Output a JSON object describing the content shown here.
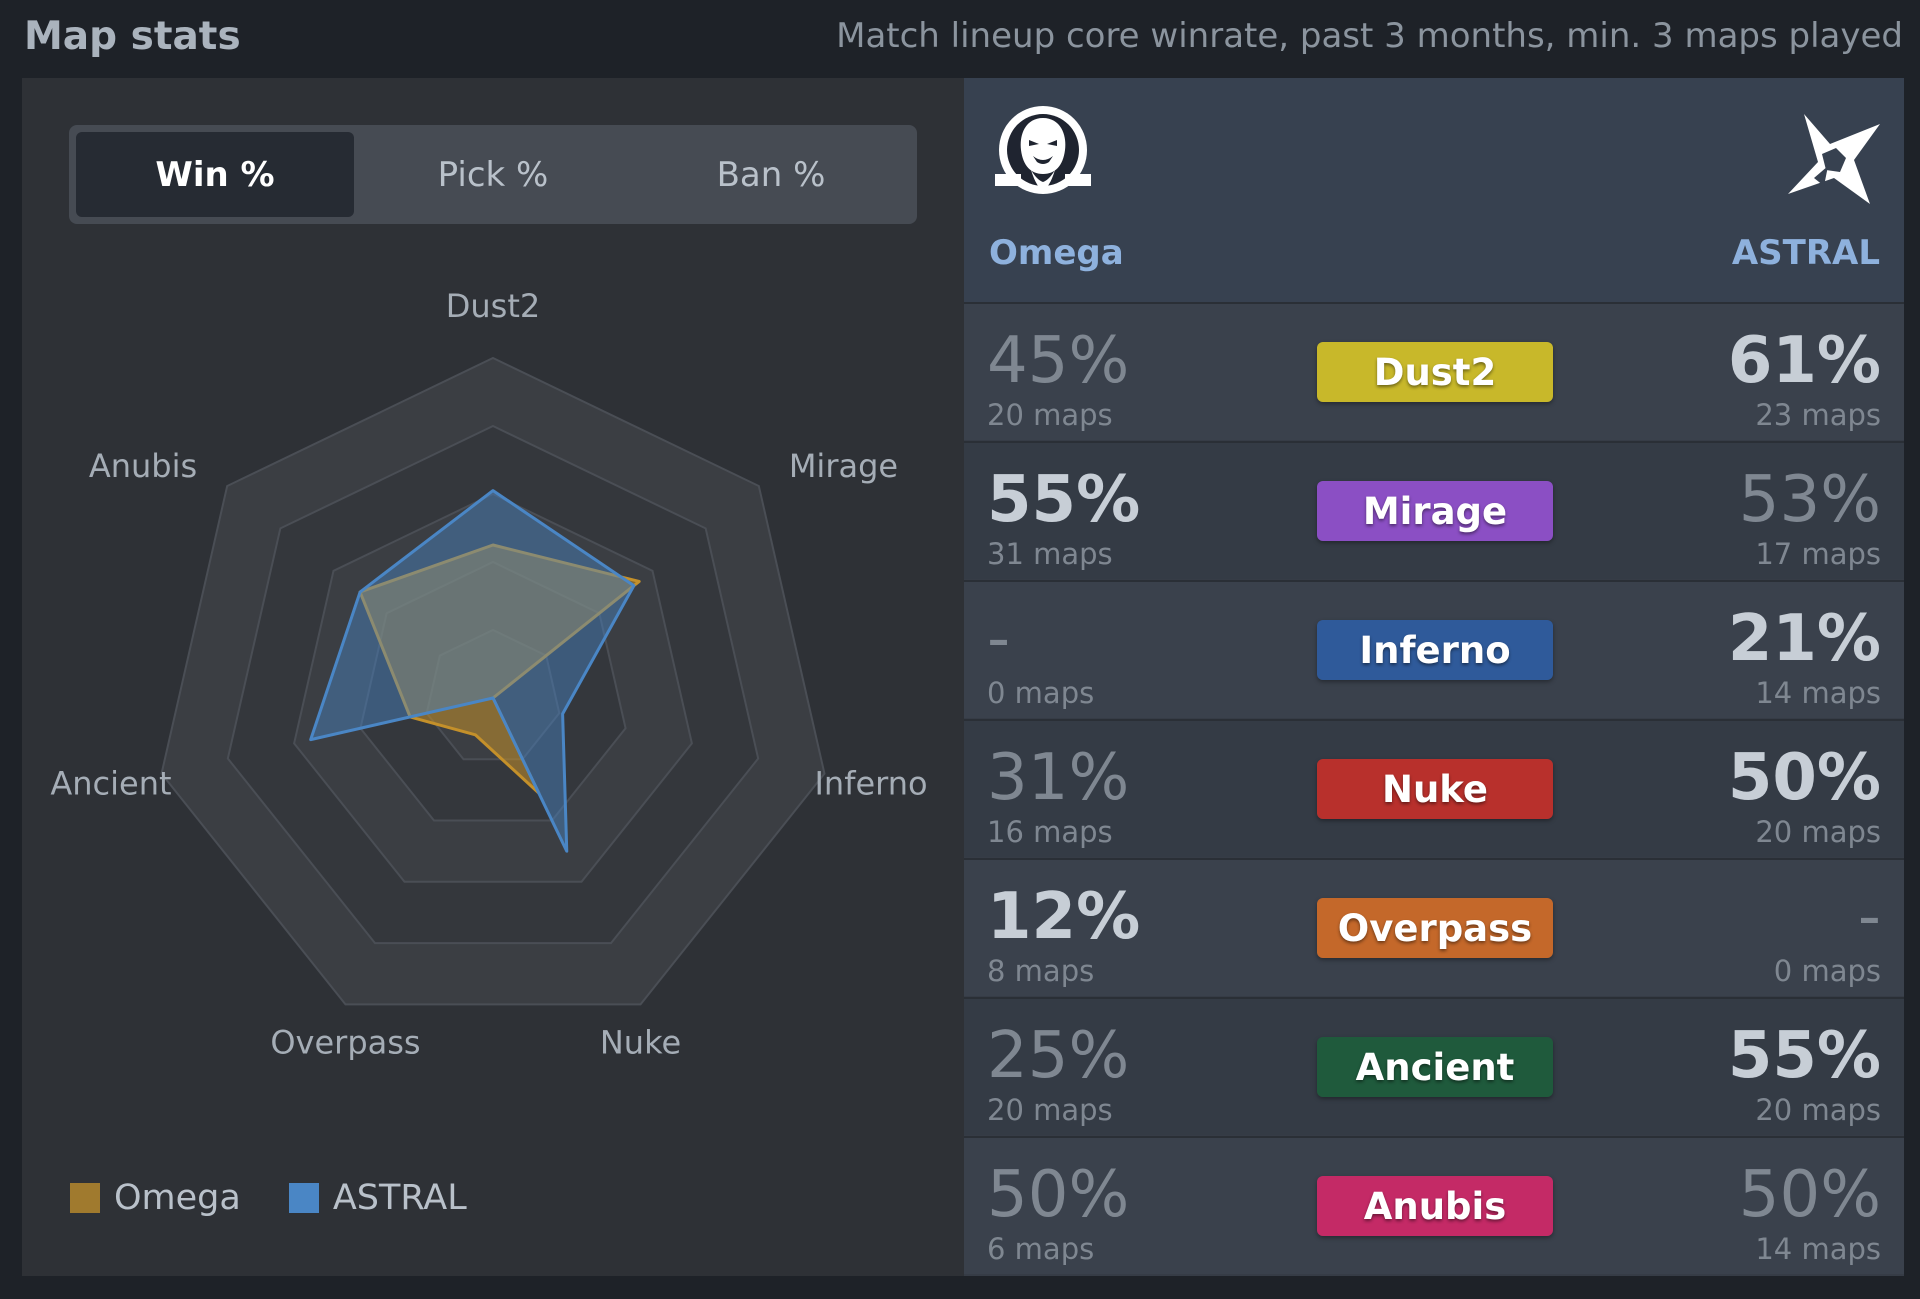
{
  "header": {
    "title": "Map stats",
    "subtitle": "Match lineup core winrate, past 3 months, min. 3 maps played"
  },
  "toggle": {
    "options": [
      {
        "label": "Win %",
        "active": true
      },
      {
        "label": "Pick %",
        "active": false
      },
      {
        "label": "Ban %",
        "active": false
      }
    ]
  },
  "colors": {
    "omega": "#a07a2e",
    "astral": "#4a86c5",
    "team_name": "#8eb1dd"
  },
  "chart_data": {
    "type": "radar",
    "axes": [
      "Dust2",
      "Mirage",
      "Inferno",
      "Nuke",
      "Overpass",
      "Ancient",
      "Anubis"
    ],
    "range": [
      0,
      100
    ],
    "series": [
      {
        "name": "Omega",
        "values": [
          45,
          55,
          0,
          31,
          12,
          25,
          50
        ],
        "color": "#c4902a"
      },
      {
        "name": "ASTRAL",
        "values": [
          61,
          53,
          21,
          50,
          0,
          55,
          50
        ],
        "color": "#4a86c5"
      }
    ],
    "legend_position": "bottom-left"
  },
  "teams": {
    "left": {
      "name": "Omega",
      "logo": "omega-monk-logo-icon"
    },
    "right": {
      "name": "ASTRAL",
      "logo": "astral-star-logo-icon"
    }
  },
  "rows": [
    {
      "map": "Dust2",
      "color": "#c8b82a",
      "left_pct": "45%",
      "left_maps": "20 maps",
      "right_pct": "61%",
      "right_maps": "23 maps",
      "winner": "right"
    },
    {
      "map": "Mirage",
      "color": "#8b4fc4",
      "left_pct": "55%",
      "left_maps": "31 maps",
      "right_pct": "53%",
      "right_maps": "17 maps",
      "winner": "left"
    },
    {
      "map": "Inferno",
      "color": "#2f5a9a",
      "left_pct": "-",
      "left_maps": "0 maps",
      "right_pct": "21%",
      "right_maps": "14 maps",
      "winner": "right"
    },
    {
      "map": "Nuke",
      "color": "#b8302c",
      "left_pct": "31%",
      "left_maps": "16 maps",
      "right_pct": "50%",
      "right_maps": "20 maps",
      "winner": "right"
    },
    {
      "map": "Overpass",
      "color": "#c4682a",
      "left_pct": "12%",
      "left_maps": "8 maps",
      "right_pct": "-",
      "right_maps": "0 maps",
      "winner": "left"
    },
    {
      "map": "Ancient",
      "color": "#1f5a3c",
      "left_pct": "25%",
      "left_maps": "20 maps",
      "right_pct": "55%",
      "right_maps": "20 maps",
      "winner": "right"
    },
    {
      "map": "Anubis",
      "color": "#c42a66",
      "left_pct": "50%",
      "left_maps": "6 maps",
      "right_pct": "50%",
      "right_maps": "14 maps",
      "winner": "none"
    }
  ]
}
